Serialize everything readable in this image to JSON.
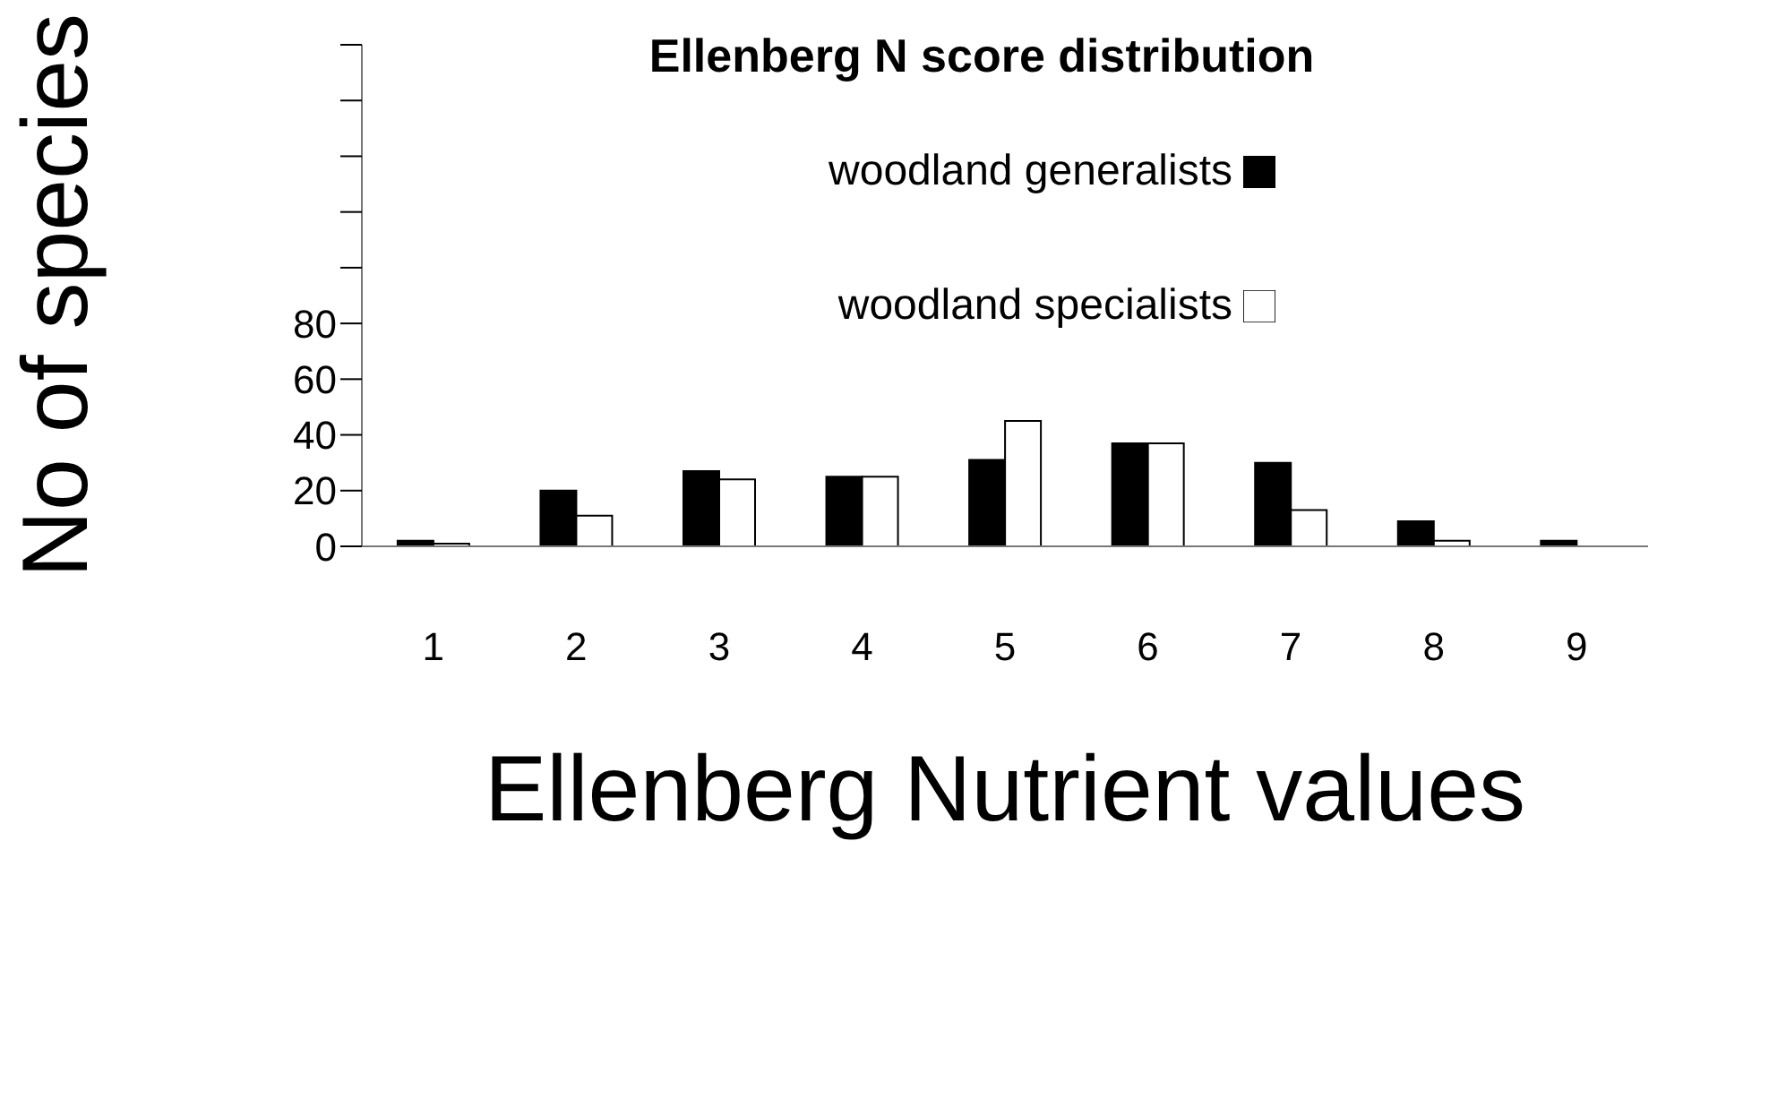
{
  "chart_data": {
    "type": "bar",
    "title": "Ellenberg N score distribution",
    "xlabel": "Ellenberg Nutrient values",
    "ylabel": "No of species",
    "categories": [
      "1",
      "2",
      "3",
      "4",
      "5",
      "6",
      "7",
      "8",
      "9"
    ],
    "series": [
      {
        "name": "woodland generalists",
        "color": "#000000",
        "values": [
          2,
          20,
          27,
          25,
          31,
          37,
          30,
          9,
          2
        ]
      },
      {
        "name": "woodland specialists",
        "color": "#ffffff",
        "values": [
          1,
          11,
          24,
          25,
          45,
          37,
          13,
          2,
          0
        ]
      }
    ],
    "ylim": [
      0,
      180
    ],
    "yticks": [
      0,
      20,
      40,
      60,
      80,
      {
        "value": 100,
        "label": null
      },
      {
        "value": 120,
        "label": null
      },
      {
        "value": 140,
        "label": null
      },
      {
        "value": 160,
        "label": null
      },
      {
        "value": 180,
        "label": null
      }
    ],
    "grid": false,
    "legend": "top right"
  }
}
